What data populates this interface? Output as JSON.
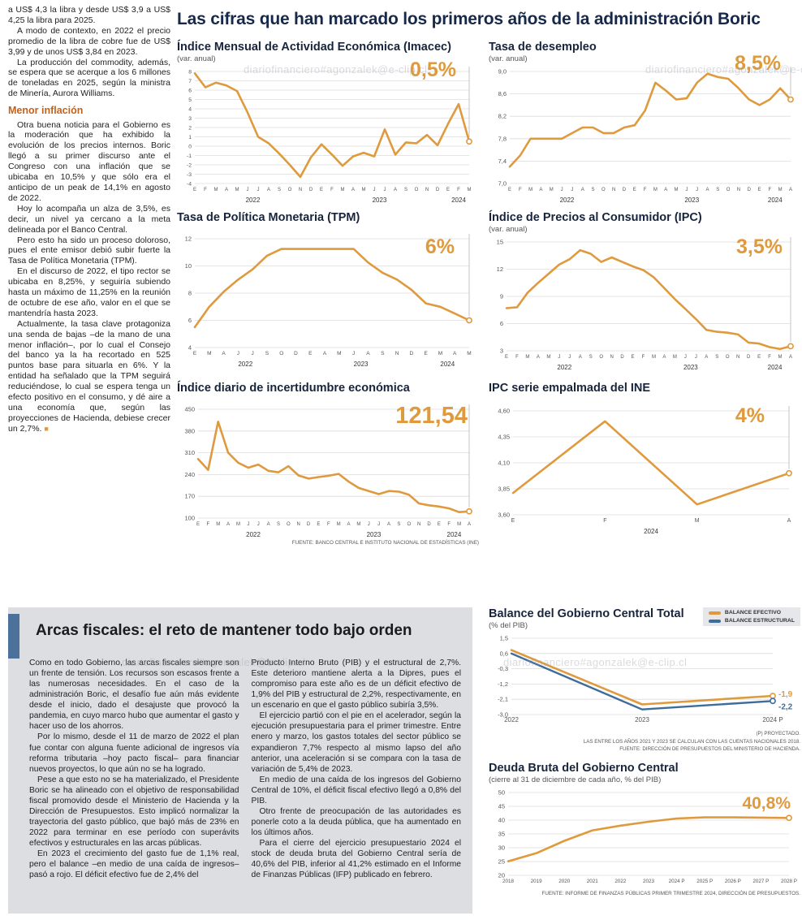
{
  "page": {
    "headline": "Las cifras que han marcado los primeros años de la administración Boric",
    "watermark": "diariofinanciero#agonzalek@e-clip.cl"
  },
  "left_column": {
    "paragraphs_top": [
      "a US$ 4,3 la libra y desde US$ 3,9 a US$ 4,25 la libra para 2025.",
      "A modo de contexto, en 2022 el precio promedio de la libra de cobre fue de US$ 3,99 y de unos US$ 3,84 en 2023.",
      "La producción del commodity, además, se espera que se acerque a los 6 millones de toneladas en 2025, según la ministra de Minería, Aurora Williams."
    ],
    "heading": "Menor inflación",
    "paragraphs_bottom": [
      "Otra buena noticia para el Gobierno es la moderación que ha exhibido la evolución de los precios internos. Boric llegó a su primer discurso ante el Congreso con una inflación que se ubicaba en 10,5% y que sólo era el anticipo de un peak de 14,1% en agosto de 2022.",
      "Hoy lo acompaña un alza de 3,5%, es decir, un nivel ya cercano a la meta delineada por el Banco Central.",
      "Pero esto ha sido un proceso doloroso, pues el ente emisor debió subir fuerte la Tasa de Política Monetaria (TPM).",
      "En el discurso de 2022, el tipo rector se ubicaba en 8,25%, y seguiría subiendo hasta un máximo de 11,25% en la reunión de octubre de ese año, valor en el que se mantendría hasta 2023.",
      "Actualmente, la tasa clave protagoniza una senda de bajas –de la mano de una menor inflación–, por lo cual el Consejo del banco ya la ha recortado en 525 puntos base para situarla en 6%. Y la entidad ha señalado que la TPM seguirá reduciéndose, lo cual se espera tenga un efecto positivo en el consumo, y dé aire a una economía que, según las proyecciones de Hacienda, debiese crecer un 2,7%."
    ],
    "end_mark": "■"
  },
  "fiscal_section": {
    "title": "Arcas fiscales: el reto de mantener todo bajo orden",
    "col1": [
      "Como en todo Gobierno, las arcas fiscales siempre son un frente de tensión. Los recursos son escasos frente a las numerosas necesidades. En el caso de la administración Boric, el desafío fue aún más evidente desde el inicio, dado el desajuste que provocó la pandemia, en cuyo marco hubo que aumentar el gasto y hacer uso de los ahorros.",
      "Por lo mismo, desde el 11 de marzo de 2022 el plan fue contar con alguna fuente adicional de ingresos vía reforma tributaria –hoy pacto fiscal– para financiar nuevos proyectos, lo que aún no se ha logrado.",
      "Pese a que esto no se ha materializado, el Presidente Boric se ha alineado con el objetivo de responsabilidad fiscal promovido desde el Ministerio de Hacienda y la Dirección de Presupuestos. Esto implicó normalizar la trayectoria del gasto público, que bajó más de 23% en 2022 para terminar en ese período con superávits efectivos y estructurales en las arcas públicas.",
      "En 2023 el crecimiento del gasto fue de 1,1% real, pero el balance –en medio de una caída de ingresos– pasó a rojo. El déficit efectivo fue de 2,4% del"
    ],
    "col2": [
      "Producto Interno Bruto (PIB) y el estructural de 2,7%. Este deterioro mantiene alerta a la Dipres, pues el compromiso para este año es de un déficit efectivo de 1,9% del PIB y estructural de 2,2%, respectivamente, en un escenario en que el gasto público subiría 3,5%.",
      "El ejercicio partió con el pie en el acelerador, según la ejecución presupuestaria para el primer trimestre. Entre enero y marzo, los gastos totales del sector público se expandieron 7,7% respecto al mismo lapso del año anterior, una aceleración si se compara con la tasa de variación de 5,4% de 2023.",
      "En medio de una caída de los ingresos del Gobierno Central de 10%, el déficit fiscal efectivo llegó a 0,8% del PIB.",
      "Otro frente de preocupación de las autoridades es ponerle coto a la deuda pública, que ha aumentado en los últimos años.",
      "Para el cierre del ejercicio presupuestario 2024 el stock de deuda bruta del Gobierno Central sería de 40,6% del PIB, inferior al 41,2% estimado en el Informe de Finanzas Públicas (IFP) publicado en febrero."
    ]
  },
  "colors": {
    "accent_orange": "#DF9A3E",
    "accent_blue": "#3E6D9C",
    "heading_navy": "#17294A",
    "section_bg": "#DCDEE2"
  },
  "chart_data": [
    {
      "type": "line",
      "title": "Índice Mensual de Actividad Económica (Imacec)",
      "subtitle": "(var. anual)",
      "highlight": "0,5%",
      "x": [
        "E",
        "F",
        "M",
        "A",
        "M",
        "J",
        "J",
        "A",
        "S",
        "O",
        "N",
        "D",
        "E",
        "F",
        "M",
        "A",
        "M",
        "J",
        "J",
        "A",
        "S",
        "O",
        "N",
        "D",
        "E",
        "F",
        "M"
      ],
      "years": [
        {
          "label": "2022",
          "start": 0,
          "end": 11
        },
        {
          "label": "2023",
          "start": 12,
          "end": 23
        },
        {
          "label": "2024",
          "start": 24,
          "end": 26
        }
      ],
      "ylim": [
        -4,
        8
      ],
      "ytick_vals": [
        8,
        7,
        6,
        5,
        4,
        3,
        2,
        1,
        0,
        -1,
        -2,
        -3,
        -4
      ],
      "ytick_labels": [
        "8",
        "7",
        "6",
        "5",
        "4",
        "3",
        "2",
        "1",
        "0",
        "-1",
        "-2",
        "-3",
        "-4"
      ],
      "ytick_fs": 6.8,
      "xtick_fs": 6,
      "ml": 22,
      "mr": 12,
      "guide": true,
      "series": [
        {
          "name": "Imacec",
          "color": "#DF9A3E",
          "values": [
            7.8,
            6.3,
            6.8,
            6.5,
            5.9,
            3.6,
            1.0,
            0.3,
            -0.8,
            -2.0,
            -3.3,
            -1.2,
            0.2,
            -0.9,
            -2.1,
            -1.1,
            -0.7,
            -1.1,
            1.8,
            -0.9,
            0.4,
            0.3,
            1.2,
            0.1,
            2.4,
            4.5,
            0.5
          ]
        }
      ]
    },
    {
      "type": "line",
      "title": "Tasa de desempleo",
      "subtitle": "(var. anual)",
      "highlight": "8,5%",
      "x": [
        "E",
        "F",
        "M",
        "A",
        "M",
        "J",
        "J",
        "A",
        "S",
        "O",
        "N",
        "D",
        "E",
        "F",
        "M",
        "A",
        "M",
        "J",
        "J",
        "A",
        "S",
        "O",
        "N",
        "D",
        "E",
        "F",
        "M",
        "A"
      ],
      "years": [
        {
          "label": "2022",
          "start": 0,
          "end": 11
        },
        {
          "label": "2023",
          "start": 12,
          "end": 23
        },
        {
          "label": "2024",
          "start": 24,
          "end": 27
        }
      ],
      "ylim": [
        7.0,
        9.0
      ],
      "ytick_vals": [
        9.0,
        8.6,
        8.2,
        7.8,
        7.4,
        7.0
      ],
      "ytick_labels": [
        "9,0",
        "8,6",
        "8,2",
        "7,8",
        "7,4",
        "7,0"
      ],
      "ytick_fs": 7.5,
      "xtick_fs": 6,
      "ml": 26,
      "mr": 12,
      "guide": true,
      "series": [
        {
          "name": "Desempleo",
          "color": "#DF9A3E",
          "values": [
            7.3,
            7.5,
            7.8,
            7.8,
            7.8,
            7.8,
            7.9,
            8.0,
            8.0,
            7.9,
            7.9,
            8.0,
            8.04,
            8.3,
            8.8,
            8.66,
            8.5,
            8.52,
            8.8,
            8.96,
            8.9,
            8.87,
            8.7,
            8.5,
            8.4,
            8.5,
            8.7,
            8.5
          ]
        }
      ]
    },
    {
      "type": "line",
      "title": "Tasa de Política Monetaria (TPM)",
      "subtitle": "",
      "highlight": "6%",
      "x": [
        "E",
        "M",
        "A",
        "J",
        "J",
        "S",
        "O",
        "D",
        "E",
        "A",
        "M",
        "J",
        "A",
        "S",
        "N",
        "D",
        "E",
        "M",
        "A",
        "M"
      ],
      "years": [
        {
          "label": "2022",
          "start": 0,
          "end": 7
        },
        {
          "label": "2023",
          "start": 8,
          "end": 15
        },
        {
          "label": "2024",
          "start": 16,
          "end": 19
        }
      ],
      "ylim": [
        4,
        12
      ],
      "ytick_vals": [
        12,
        10,
        8,
        6,
        4
      ],
      "ytick_labels": [
        "12",
        "10",
        "8",
        "6",
        "4"
      ],
      "ytick_fs": 7.5,
      "xtick_fs": 6.5,
      "ml": 22,
      "mr": 12,
      "guide": true,
      "series": [
        {
          "name": "TPM",
          "color": "#DF9A3E",
          "values": [
            5.5,
            7.0,
            8.1,
            9.0,
            9.75,
            10.75,
            11.25,
            11.25,
            11.25,
            11.25,
            11.25,
            11.25,
            10.25,
            9.5,
            9.0,
            8.25,
            7.25,
            7.0,
            6.5,
            6.0
          ]
        }
      ]
    },
    {
      "type": "line",
      "title": "Índice de Precios al Consumidor (IPC)",
      "subtitle": "(var. anual)",
      "highlight": "3,5%",
      "x": [
        "E",
        "F",
        "M",
        "A",
        "M",
        "J",
        "J",
        "A",
        "S",
        "O",
        "N",
        "D",
        "E",
        "F",
        "M",
        "A",
        "M",
        "J",
        "J",
        "A",
        "S",
        "O",
        "N",
        "D",
        "E",
        "F",
        "M",
        "A"
      ],
      "years": [
        {
          "label": "2022",
          "start": 0,
          "end": 11
        },
        {
          "label": "2023",
          "start": 12,
          "end": 23
        },
        {
          "label": "2024",
          "start": 24,
          "end": 27
        }
      ],
      "ylim": [
        3,
        15
      ],
      "ytick_vals": [
        15,
        12,
        9,
        6,
        3
      ],
      "ytick_labels": [
        "15",
        "12",
        "9",
        "6",
        "3"
      ],
      "ytick_fs": 7.5,
      "xtick_fs": 6,
      "ml": 22,
      "mr": 12,
      "guide": true,
      "series": [
        {
          "name": "IPC",
          "color": "#DF9A3E",
          "values": [
            7.7,
            7.8,
            9.4,
            10.5,
            11.5,
            12.5,
            13.1,
            14.1,
            13.7,
            12.8,
            13.3,
            12.8,
            12.3,
            11.9,
            11.1,
            9.9,
            8.7,
            7.6,
            6.5,
            5.3,
            5.1,
            5.0,
            4.8,
            3.9,
            3.8,
            3.4,
            3.2,
            3.5
          ]
        }
      ]
    },
    {
      "type": "line",
      "title": "Índice diario de incertidumbre económica",
      "subtitle": "",
      "highlight": "121,54",
      "source": "FUENTE: BANCO CENTRAL E INSTITUTO NACIONAL DE ESTADÍSTICAS (INE)",
      "x": [
        "E",
        "F",
        "M",
        "A",
        "M",
        "J",
        "J",
        "A",
        "S",
        "O",
        "N",
        "D",
        "E",
        "F",
        "M",
        "A",
        "M",
        "J",
        "J",
        "A",
        "S",
        "O",
        "N",
        "D",
        "E",
        "F",
        "M",
        "A"
      ],
      "years": [
        {
          "label": "2022",
          "start": 0,
          "end": 11
        },
        {
          "label": "2023",
          "start": 12,
          "end": 23
        },
        {
          "label": "2024",
          "start": 24,
          "end": 27
        }
      ],
      "ylim": [
        100,
        450
      ],
      "ytick_vals": [
        450,
        380,
        310,
        240,
        170,
        100
      ],
      "ytick_labels": [
        "450",
        "380",
        "310",
        "240",
        "170",
        "100"
      ],
      "ytick_fs": 7.5,
      "xtick_fs": 6,
      "ml": 26,
      "mr": 12,
      "guide": true,
      "series": [
        {
          "name": "Incertidumbre",
          "color": "#DF9A3E",
          "values": [
            290,
            255,
            410,
            310,
            278,
            262,
            272,
            252,
            247,
            267,
            237,
            227,
            232,
            236,
            242,
            217,
            197,
            187,
            177,
            187,
            185,
            175,
            147,
            141,
            137,
            131,
            119,
            121.54
          ]
        }
      ]
    },
    {
      "type": "line",
      "title": "IPC serie empalmada del INE",
      "subtitle": "",
      "highlight": "4%",
      "x": [
        "E",
        "F",
        "M",
        "A"
      ],
      "years": [
        {
          "label": "2024",
          "start": 0,
          "end": 3
        }
      ],
      "ylim": [
        3.6,
        4.6
      ],
      "ytick_vals": [
        4.6,
        4.35,
        4.1,
        3.85,
        3.6
      ],
      "ytick_labels": [
        "4,60",
        "4,35",
        "4,10",
        "3,85",
        "3,60"
      ],
      "ytick_fs": 7.5,
      "xtick_fs": 7,
      "ml": 30,
      "mr": 14,
      "guide": true,
      "series": [
        {
          "name": "IPC INE",
          "color": "#DF9A3E",
          "values": [
            3.81,
            4.5,
            3.7,
            4.0
          ]
        }
      ]
    },
    {
      "type": "line",
      "title": "Balance del Gobierno Central Total",
      "subtitle": "(% del PIB)",
      "highlight": "",
      "footnotes": [
        "(P) PROYECTADO.",
        "LAS ENTRE LOS AÑOS 2021 Y 2023 SE CALCULAN  CON LAS CUENTAS NACIONALES 2018.",
        "FUENTE: DIRECCIÓN DE PRESUPUESTOS DEL MINISTERIO DE HACIENDA."
      ],
      "x": [
        "2022",
        "2023",
        "2024 P"
      ],
      "ylim": [
        -3.0,
        1.5
      ],
      "ytick_vals": [
        1.5,
        0.6,
        -0.3,
        -1.2,
        -2.1,
        -3.0
      ],
      "ytick_labels": [
        "1,5",
        "0,6",
        "-0,3",
        "-1,2",
        "-2,1",
        "-3,0"
      ],
      "ytick_fs": 7.5,
      "xtick_fs": 8,
      "ml": 28,
      "mr": 34,
      "guide": false,
      "series": [
        {
          "name": "BALANCE EFECTIVO",
          "color": "#DF9A3E",
          "values": [
            0.8,
            -2.4,
            -1.9
          ],
          "end_label": "-1,9",
          "label_dy": -2
        },
        {
          "name": "BALANCE ESTRUCTURAL",
          "color": "#3E6D9C",
          "values": [
            0.6,
            -2.7,
            -2.2
          ],
          "end_label": "-2,2",
          "label_dy": 7,
          "width": 2.4
        }
      ]
    },
    {
      "type": "line",
      "title": "Deuda Bruta del Gobierno Central",
      "subtitle": "(cierre al 31 de diciembre de cada año, % del PIB)",
      "highlight": "40,8%",
      "source": "FUENTE: INFORME DE FINANZAS PÚBLICAS PRIMER TRIMESTRE 2024, DIRECCIÓN DE PRESUPUESTOS.",
      "x": [
        "2018",
        "2019",
        "2020",
        "2021",
        "2022",
        "2023",
        "2024 P",
        "2025 P",
        "2026 P",
        "2027 P",
        "2028 P"
      ],
      "ylim": [
        20,
        50
      ],
      "ytick_vals": [
        50,
        45,
        40,
        35,
        30,
        25,
        20
      ],
      "ytick_labels": [
        "50",
        "45",
        "40",
        "35",
        "30",
        "25",
        "20"
      ],
      "ytick_fs": 7.5,
      "xtick_fs": 6.3,
      "ml": 24,
      "mr": 14,
      "guide": false,
      "series": [
        {
          "name": "Deuda bruta",
          "color": "#DF9A3E",
          "values": [
            25.1,
            28.0,
            32.5,
            36.3,
            38.0,
            39.4,
            40.6,
            41.0,
            41.0,
            40.9,
            40.8
          ]
        }
      ]
    }
  ]
}
